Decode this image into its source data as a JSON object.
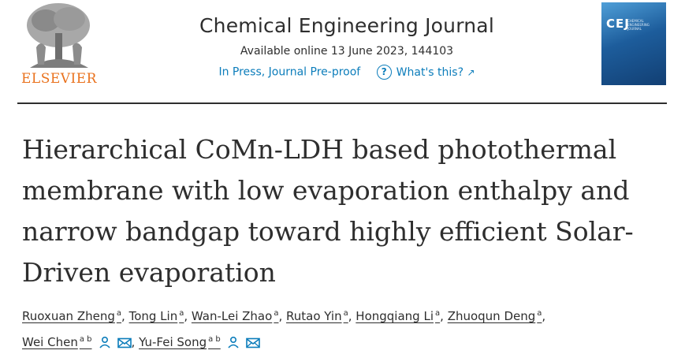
{
  "publisher": {
    "logo_text": "ELSEVIER"
  },
  "journal": {
    "name": "Chemical Engineering Journal",
    "available": "Available online 13 June 2023, 144103",
    "status_link": "In Press, Journal Pre-proof",
    "help_link": "What's this?",
    "help_icon": "?",
    "external_icon": "↗"
  },
  "cover": {
    "brand": "CEJ",
    "subtitle": "CHEMICAL ENGINEERING JOURNAL"
  },
  "article": {
    "title_lines": [
      "Hierarchical CoMn-LDH based photothermal",
      "membrane with low evaporation enthalpy and",
      "narrow bandgap toward highly efficient Solar-",
      "Driven evaporation"
    ]
  },
  "authors": [
    {
      "name": "Ruoxuan Zheng",
      "aff": "a",
      "sep": ","
    },
    {
      "name": "Tong Lin",
      "aff": "a",
      "sep": ","
    },
    {
      "name": "Wan-Lei Zhao",
      "aff": "a",
      "sep": ","
    },
    {
      "name": "Rutao Yin",
      "aff": "a",
      "sep": ","
    },
    {
      "name": "Hongqiang Li",
      "aff": "a",
      "sep": ","
    },
    {
      "name": "Zhuoqun Deng",
      "aff": "a",
      "sep": ","
    },
    {
      "name": "Wei Chen",
      "aff": "a b",
      "sep": ","
    },
    {
      "name": "Yu-Fei Song",
      "aff": "a b",
      "sep": ""
    }
  ],
  "colors": {
    "link": "#0c7dbb",
    "elsevier_orange": "#e9711c",
    "text": "#2e2e2e"
  }
}
